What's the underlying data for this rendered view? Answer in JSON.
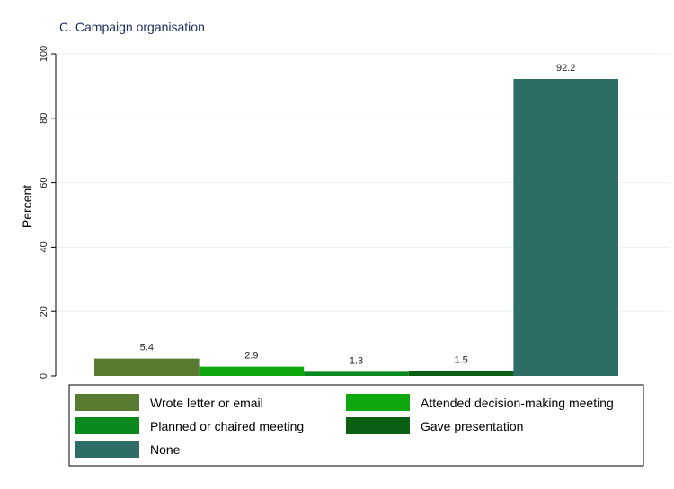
{
  "chart_data": {
    "type": "bar",
    "title": "C. Campaign organisation",
    "xlabel": "",
    "ylabel": "Percent",
    "ylim": [
      0,
      100
    ],
    "yticks": [
      0,
      20,
      40,
      60,
      80,
      100
    ],
    "grid": true,
    "legend_position": "bottom",
    "series": [
      {
        "name": "Wrote letter or email",
        "value": 5.4,
        "label": "5.4",
        "color": "#5a7a32"
      },
      {
        "name": "Attended decision-making meeting",
        "value": 2.9,
        "label": "2.9",
        "color": "#0fa80f"
      },
      {
        "name": "Planned or chaired meeting",
        "value": 1.3,
        "label": "1.3",
        "color": "#0a8a1e"
      },
      {
        "name": "Gave presentation",
        "value": 1.5,
        "label": "1.5",
        "color": "#0b5f12"
      },
      {
        "name": "None",
        "value": 92.2,
        "label": "92.2",
        "color": "#2e6d66"
      }
    ]
  }
}
